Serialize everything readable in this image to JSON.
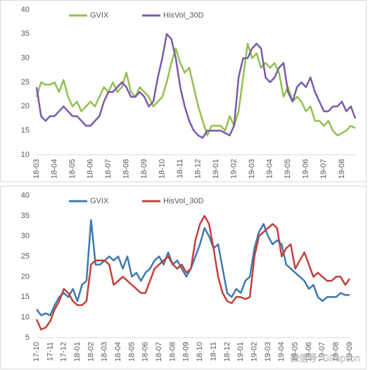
{
  "chart_data": [
    {
      "type": "line",
      "categories": [
        "18-03",
        null,
        null,
        null,
        "18-04",
        null,
        null,
        null,
        "18-05",
        null,
        null,
        null,
        "18-06",
        null,
        null,
        null,
        "18-07",
        null,
        null,
        null,
        "18-08",
        null,
        null,
        null,
        "18-09",
        null,
        null,
        null,
        "18-10",
        null,
        null,
        null,
        "18-11",
        null,
        null,
        null,
        "18-12",
        null,
        null,
        null,
        "19-01",
        null,
        null,
        null,
        "19-02",
        null,
        null,
        null,
        "19-03",
        null,
        null,
        null,
        "19-04",
        null,
        null,
        null,
        "19-05",
        null,
        null,
        null,
        "19-06",
        null,
        null,
        null,
        "19-07",
        null,
        null,
        null,
        "19-08",
        null,
        null,
        null
      ],
      "series": [
        {
          "name": "GVIX",
          "color": "#92c050",
          "values": [
            22,
            25,
            24.5,
            24.5,
            25,
            23,
            25.5,
            22,
            20,
            21,
            19,
            20,
            21,
            20,
            22,
            24,
            23,
            25,
            23,
            24,
            27,
            23,
            22,
            24,
            23,
            22,
            20,
            21,
            22,
            25,
            29,
            32,
            29,
            27,
            28,
            24,
            20,
            17,
            14,
            16,
            16,
            16,
            15,
            18,
            16,
            19,
            26,
            33,
            30,
            31,
            28,
            29,
            28,
            29,
            27,
            22,
            24,
            21,
            22,
            21,
            19,
            20,
            17,
            17,
            16,
            17,
            15,
            14,
            14.5,
            15,
            16,
            15.5
          ]
        },
        {
          "name": "HisVol_30D",
          "color": "#7a5ba8",
          "values": [
            24,
            18,
            17,
            18,
            18,
            19,
            20,
            19,
            18,
            18,
            17,
            16,
            16,
            17,
            18,
            21,
            23,
            23,
            24,
            25,
            24,
            22,
            22,
            23,
            22,
            20,
            21,
            26,
            30,
            35,
            34,
            30,
            24,
            20,
            17,
            15,
            14,
            13.5,
            15,
            15,
            15,
            15,
            14.5,
            14,
            16,
            26,
            30,
            30,
            32,
            33,
            32,
            26,
            25,
            26,
            28,
            29,
            23,
            21,
            24,
            25,
            24,
            26,
            23,
            21,
            19,
            19,
            20,
            20,
            21,
            19,
            20,
            17.5
          ]
        }
      ],
      "ylim": [
        10,
        40
      ],
      "yticks": [
        10,
        15,
        20,
        25,
        30,
        35,
        40
      ],
      "grid": false,
      "legend": "top-left"
    },
    {
      "type": "line",
      "categories": [
        "17-10",
        null,
        null,
        "17-11",
        null,
        null,
        "17-12",
        null,
        null,
        "18-01",
        null,
        null,
        "18-02",
        null,
        null,
        "18-03",
        null,
        null,
        "18-04",
        null,
        null,
        "18-05",
        null,
        null,
        "18-06",
        null,
        null,
        "18-07",
        null,
        null,
        "18-08",
        null,
        null,
        "18-09",
        null,
        null,
        "18-10",
        null,
        null,
        "18-11",
        null,
        null,
        "18-12",
        null,
        null,
        "19-01",
        null,
        null,
        "19-02",
        null,
        null,
        "19-03",
        null,
        null,
        "19-04",
        null,
        null,
        "19-05",
        null,
        null,
        "19-06",
        null,
        null,
        "19-07",
        null,
        null,
        "19-08",
        null,
        null,
        "19-09"
      ],
      "series": [
        {
          "name": "GVIX",
          "color": "#3e79b0",
          "values": [
            12,
            10.5,
            11,
            10.5,
            13,
            15,
            16,
            15,
            17,
            14,
            18,
            19,
            34,
            23,
            23,
            24,
            25,
            24,
            25,
            22,
            25,
            20,
            21,
            19,
            21,
            22,
            24,
            25,
            23,
            26,
            23,
            24,
            22,
            20,
            22,
            25,
            28,
            32,
            30,
            27,
            28,
            22,
            16,
            15,
            17,
            16,
            19,
            20,
            27,
            31,
            33,
            30,
            28,
            29,
            28,
            23,
            22,
            21,
            20,
            19,
            17,
            18,
            15,
            14,
            15,
            15,
            15,
            16,
            15.5,
            15.5
          ]
        },
        {
          "name": "HisVol_30D",
          "color": "#c0413c",
          "values": [
            9.5,
            7,
            7.5,
            9,
            12,
            14,
            17,
            16,
            14,
            13,
            13,
            14,
            23,
            24,
            24,
            24,
            23,
            18,
            19,
            20,
            19,
            18,
            17,
            16,
            16,
            19,
            22,
            23,
            24,
            25,
            23,
            22,
            23,
            21,
            22,
            29,
            33,
            35,
            33,
            27,
            20,
            16,
            14,
            13.5,
            15,
            15,
            14.5,
            15,
            25,
            30,
            31,
            32,
            33,
            32,
            25,
            27,
            28,
            22,
            24,
            26,
            23,
            20,
            21,
            20,
            19,
            19,
            20,
            20,
            18,
            19.5
          ]
        }
      ],
      "ylim": [
        5,
        40
      ],
      "yticks": [
        5,
        10,
        15,
        20,
        25,
        30,
        35,
        40
      ],
      "grid": false,
      "legend": "top-left",
      "watermark": "微信号: GFoption"
    }
  ]
}
